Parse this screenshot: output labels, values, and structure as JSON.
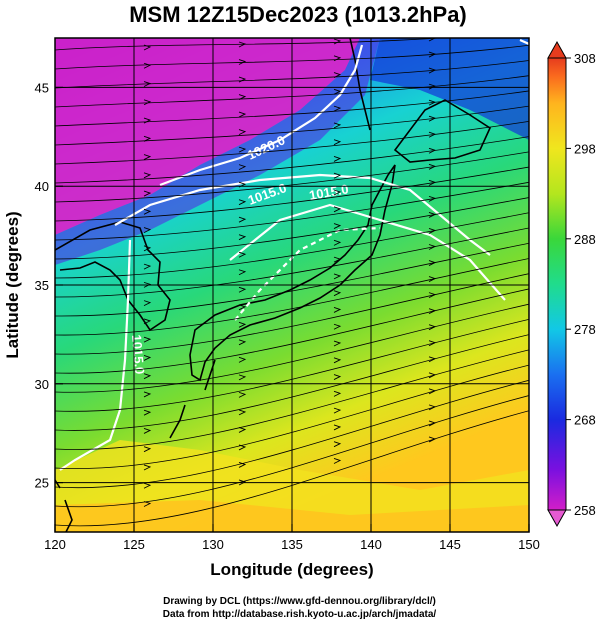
{
  "title": "MSM 12Z15Dec2023 (1013.2hPa)",
  "x_axis": {
    "label": "Longitude (degrees)",
    "range": [
      120,
      150
    ],
    "ticks": [
      "120",
      "125",
      "130",
      "135",
      "140",
      "145",
      "150"
    ]
  },
  "y_axis": {
    "label": "Latitude  (degrees)",
    "range": [
      22.5,
      47.5
    ],
    "ticks": [
      "25",
      "30",
      "35",
      "40",
      "45"
    ]
  },
  "colorbar": {
    "range": [
      258,
      308
    ],
    "ticks": [
      "258",
      "268",
      "278",
      "288",
      "298",
      "308"
    ],
    "colors": [
      "#d21ec8",
      "#7a10e0",
      "#1a2ae0",
      "#1a70f0",
      "#12c8e6",
      "#20dc8c",
      "#3ad73a",
      "#b4e61e",
      "#f0e61e",
      "#ffb41e",
      "#fa6a1e",
      "#e63c1e"
    ]
  },
  "contours": {
    "color": "#ffffff",
    "labels": [
      "1020.0",
      "1015.0",
      "1015.0",
      "1015.0"
    ]
  },
  "gridlines": true,
  "credits": {
    "line1": "Drawing by DCL (https://www.gfd-dennou.org/library/dcl/)",
    "line2": "Data from http://database.rish.kyoto-u.ac.jp/arch/jmadata/"
  }
}
